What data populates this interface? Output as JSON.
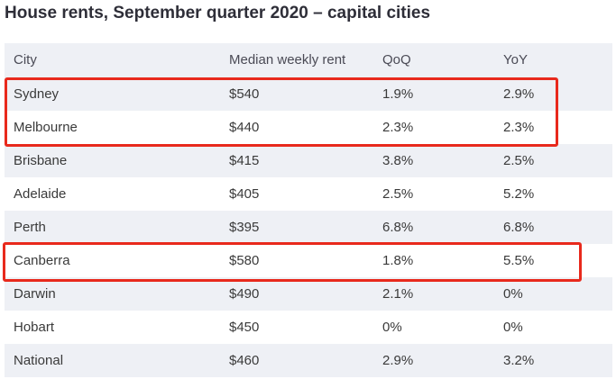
{
  "title": "House rents, September quarter 2020 – capital cities",
  "chart_data": {
    "type": "table",
    "title": "House rents, September quarter 2020 – capital cities",
    "columns": [
      "City",
      "Median weekly rent",
      "QoQ",
      "YoY"
    ],
    "rows": [
      [
        "Sydney",
        "$540",
        "1.9%",
        "2.9%"
      ],
      [
        "Melbourne",
        "$440",
        "2.3%",
        "2.3%"
      ],
      [
        "Brisbane",
        "$415",
        "3.8%",
        "2.5%"
      ],
      [
        "Adelaide",
        "$405",
        "2.5%",
        "5.2%"
      ],
      [
        "Perth",
        "$395",
        "6.8%",
        "6.8%"
      ],
      [
        "Canberra",
        "$580",
        "1.8%",
        "5.5%"
      ],
      [
        "Darwin",
        "$490",
        "2.1%",
        "0%"
      ],
      [
        "Hobart",
        "$450",
        "0%",
        "0%"
      ],
      [
        "National",
        "$460",
        "2.9%",
        "3.2%"
      ]
    ],
    "highlighted_cities": [
      "Sydney",
      "Melbourne",
      "Canberra"
    ],
    "colors": {
      "highlight": "#e8291c",
      "stripe": "#eef0f5",
      "title": "#2e2e38"
    }
  }
}
